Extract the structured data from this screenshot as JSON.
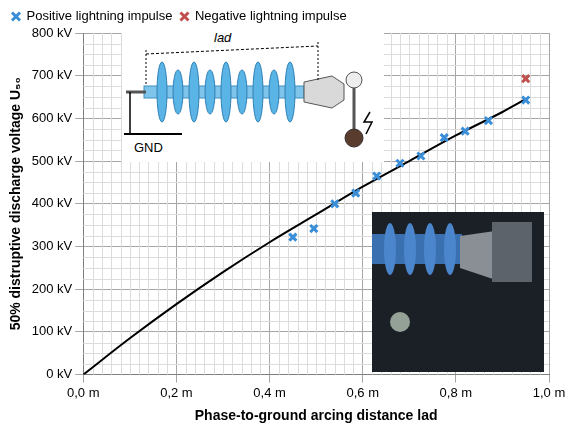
{
  "chart_data": {
    "type": "scatter",
    "x_label": "Phase-to-ground arcing distance lad",
    "y_label": "50% distruptive discharge voltage U₅₀",
    "xlim": [
      0,
      1
    ],
    "xticks": [
      {
        "value": 0,
        "label": "0,0 m"
      },
      {
        "value": 0.2,
        "label": "0,2 m"
      },
      {
        "value": 0.4,
        "label": "0,4 m"
      },
      {
        "value": 0.6,
        "label": "0,6 m"
      },
      {
        "value": 0.8,
        "label": "0,8 m"
      },
      {
        "value": 1,
        "label": "1,0 m"
      }
    ],
    "ylim": [
      0,
      800
    ],
    "yticks": [
      {
        "value": 0,
        "label": "0 kV"
      },
      {
        "value": 100,
        "label": "100 kV"
      },
      {
        "value": 200,
        "label": "200 kV"
      },
      {
        "value": 300,
        "label": "300 kV"
      },
      {
        "value": 400,
        "label": "400 kV"
      },
      {
        "value": 500,
        "label": "500 kV"
      },
      {
        "value": 600,
        "label": "600 kV"
      },
      {
        "value": 700,
        "label": "700 kV"
      },
      {
        "value": 800,
        "label": "800 kV"
      }
    ],
    "grid": true,
    "legend": "top",
    "series": [
      {
        "name": "Positive lightning impulse",
        "color": "#3a8ed8",
        "marker": "cross",
        "x": [
          0.45,
          0.495,
          0.54,
          0.585,
          0.63,
          0.68,
          0.725,
          0.775,
          0.82,
          0.87,
          0.95
        ],
        "values": [
          322,
          342,
          400,
          425,
          465,
          495,
          512,
          555,
          570,
          595,
          643
        ]
      },
      {
        "name": "Negative lightning impulse",
        "color": "#c0504d",
        "marker": "cross",
        "x": [
          0.95
        ],
        "values": [
          693
        ]
      },
      {
        "type": "line",
        "color": "#000000",
        "line_style": "solid",
        "x": [
          0,
          0.1,
          0.2,
          0.3,
          0.4,
          0.5,
          0.6,
          0.7,
          0.8,
          0.9,
          0.95
        ],
        "values": [
          0,
          85,
          165,
          240,
          310,
          375,
          440,
          500,
          560,
          615,
          645
        ]
      }
    ],
    "annotations": {
      "inset_labels": [
        "lad",
        "GND"
      ]
    }
  }
}
